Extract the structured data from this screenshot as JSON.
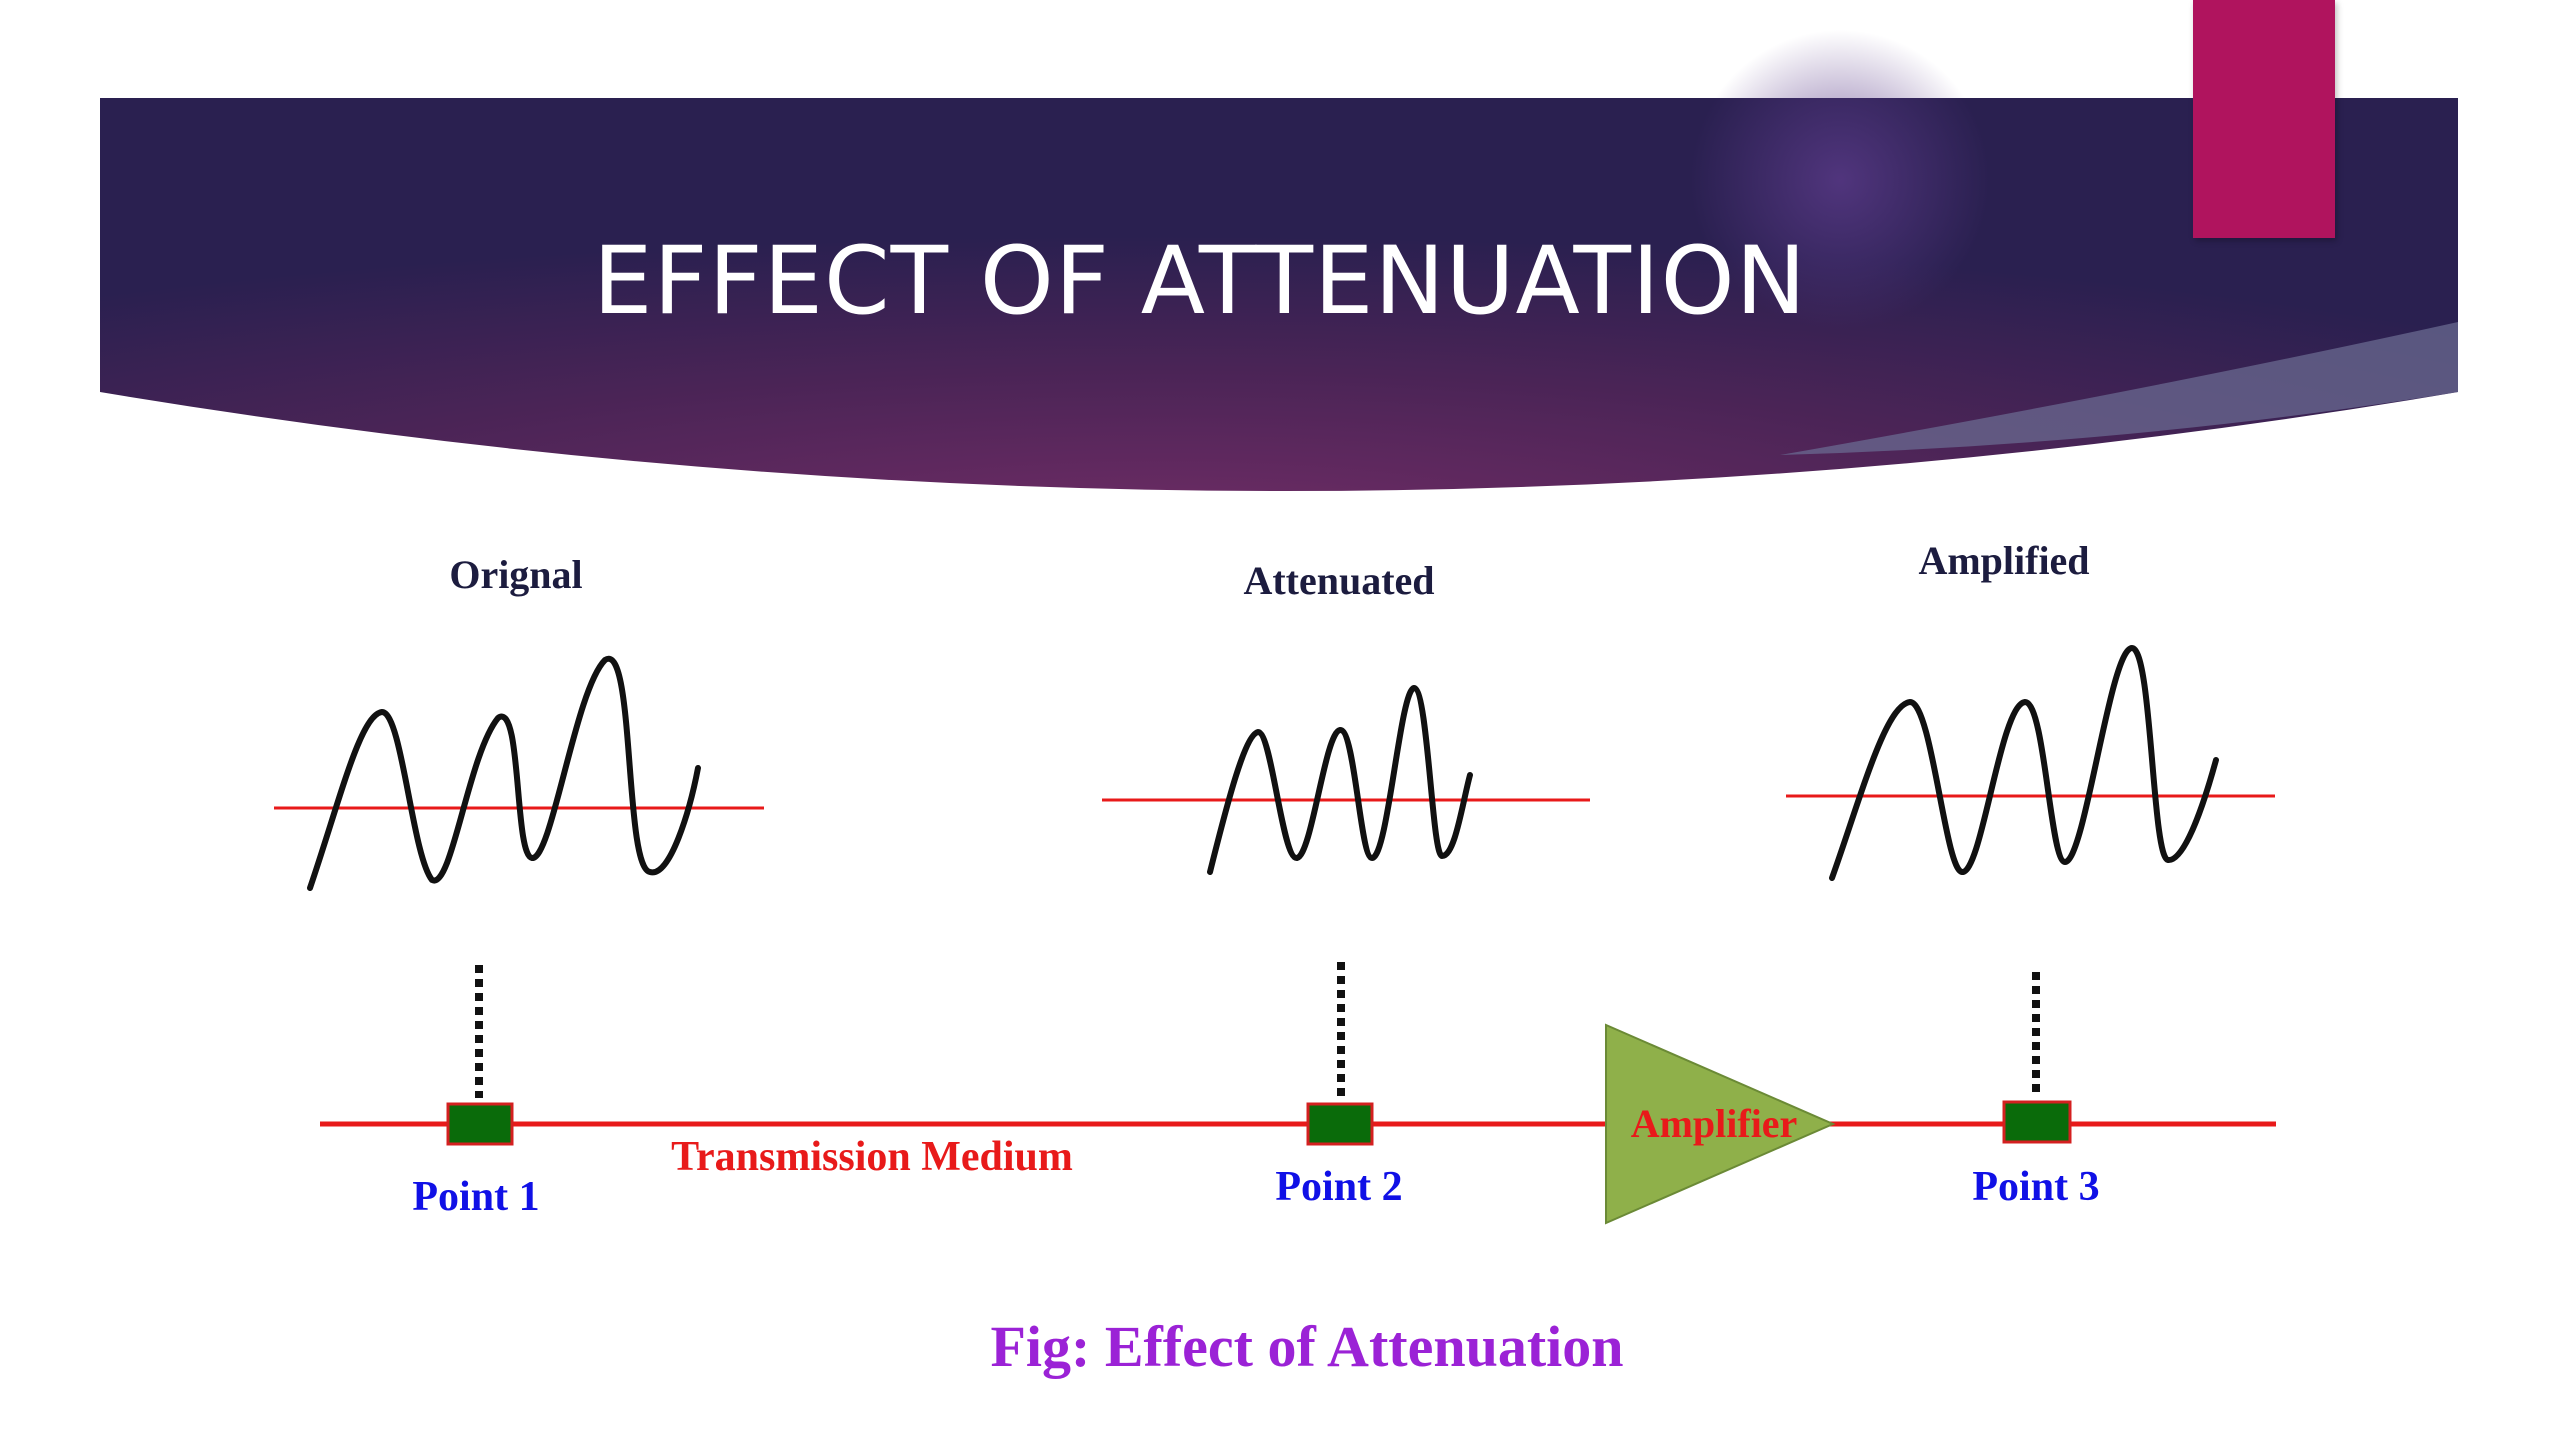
{
  "slide": {
    "title": "EFFECT OF ATTENUATION"
  },
  "diagram": {
    "signals": [
      {
        "label": "Orignal"
      },
      {
        "label": "Attenuated"
      },
      {
        "label": "Amplified"
      }
    ],
    "points": [
      {
        "label": "Point 1"
      },
      {
        "label": "Point 2"
      },
      {
        "label": "Point 3"
      }
    ],
    "medium_label": "Transmission Medium",
    "amplifier_label": "Amplifier",
    "caption": "Fig: Effect of Attenuation"
  },
  "colors": {
    "banner_dark": "#2b2150",
    "banner_mid": "#6b2d63",
    "accent": "#b0145e",
    "medium_line": "#e81a1a",
    "node_fill": "#0a6b0a",
    "amplifier_fill": "#8fb04a",
    "point_text": "#1010e6",
    "caption_text": "#9b22d6"
  }
}
